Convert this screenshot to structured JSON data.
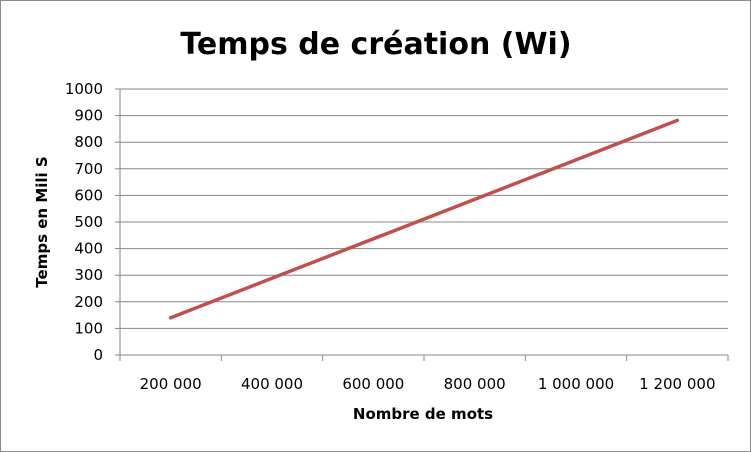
{
  "chart_data": {
    "type": "line",
    "title": "Temps de création (Wi)",
    "xlabel": "Nombre de mots",
    "ylabel": "Temps en Mili S",
    "x_tick_labels": [
      "200 000",
      "400 000",
      "600 000",
      "800 000",
      "1 000 000",
      "1 200 000"
    ],
    "y_tick_labels": [
      "0",
      "100",
      "200",
      "300",
      "400",
      "500",
      "600",
      "700",
      "800",
      "900",
      "1000"
    ],
    "ylim": [
      0,
      1000
    ],
    "grid": true,
    "legend": "none",
    "series": [
      {
        "color": "#C0504D",
        "x": [
          200000,
          1200000
        ],
        "y": [
          140,
          882
        ]
      }
    ]
  }
}
